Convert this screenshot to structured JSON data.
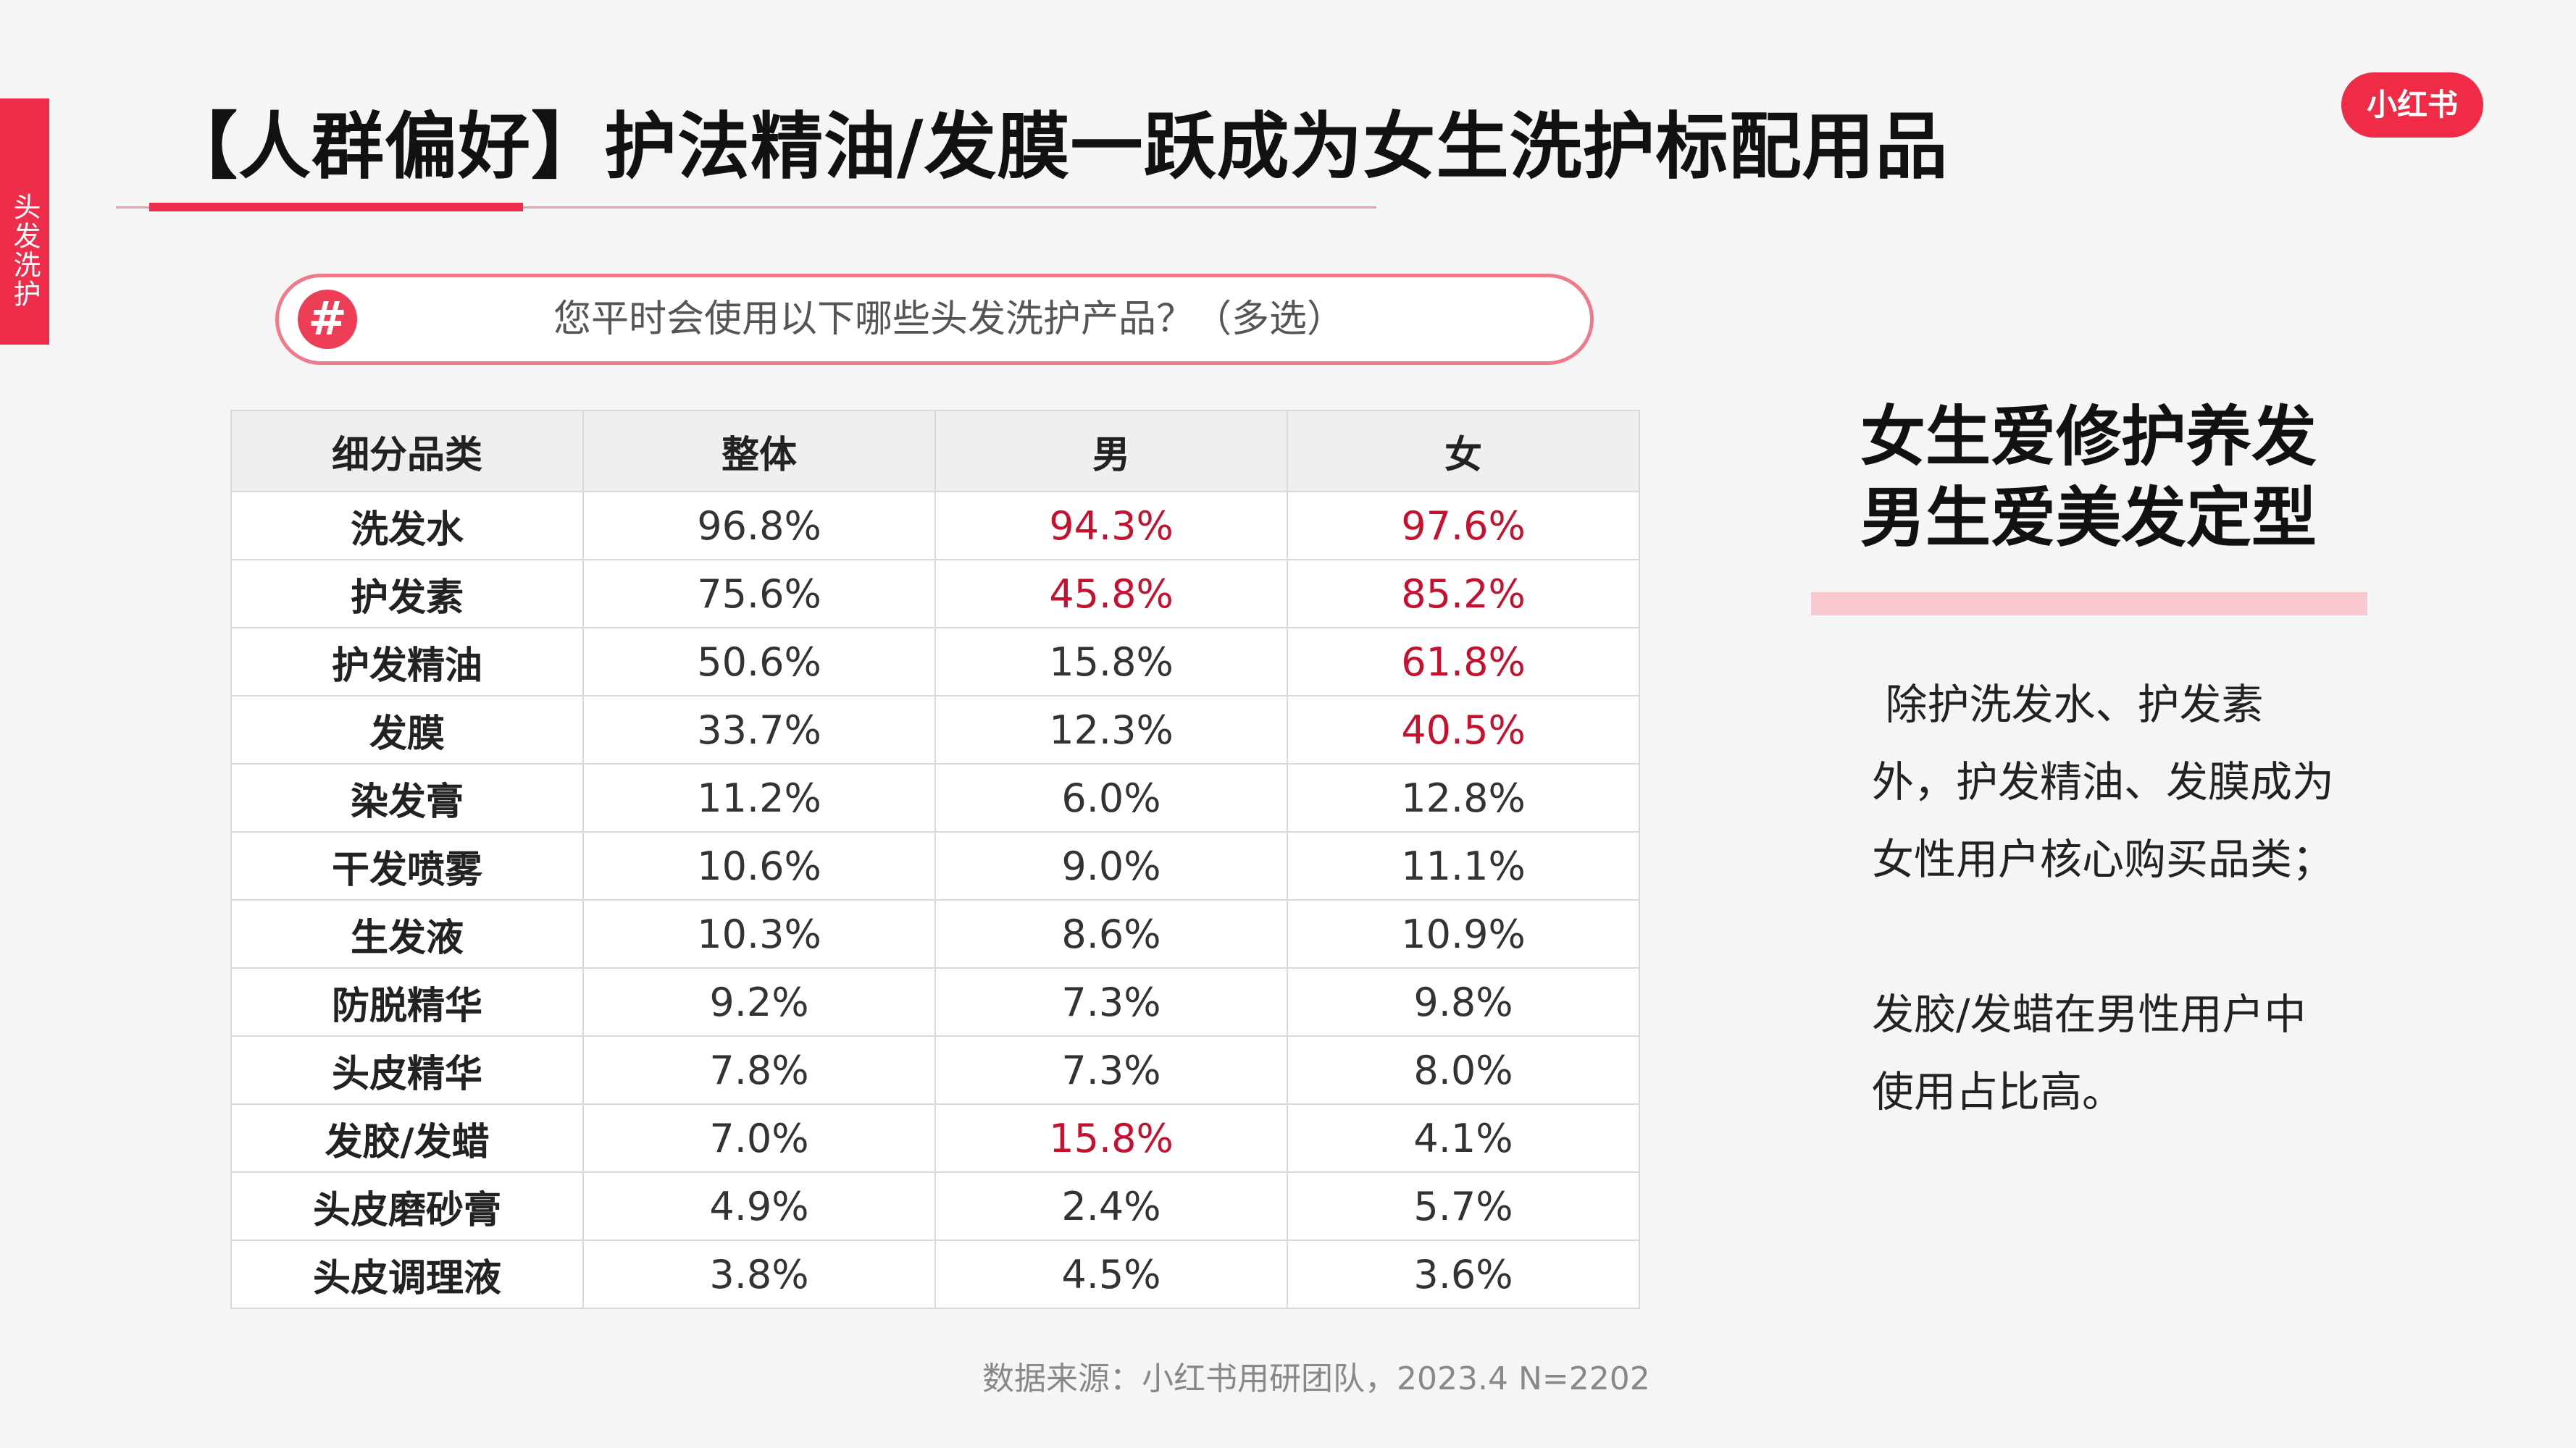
{
  "side_tab": "头发洗护",
  "logo": "小红书",
  "title": "【人群偏好】护法精油/发膜一跃成为女生洗护标配用品",
  "question": {
    "icon": "#",
    "text": "您平时会使用以下哪些头发洗护产品？（多选）"
  },
  "table": {
    "headers": [
      "细分品类",
      "整体",
      "男",
      "女"
    ],
    "rows": [
      {
        "cat": "洗发水",
        "all": "96.8%",
        "male": "94.3%",
        "female": "97.6%",
        "hl": [
          false,
          true,
          true
        ]
      },
      {
        "cat": "护发素",
        "all": "75.6%",
        "male": "45.8%",
        "female": "85.2%",
        "hl": [
          false,
          true,
          true
        ]
      },
      {
        "cat": "护发精油",
        "all": "50.6%",
        "male": "15.8%",
        "female": "61.8%",
        "hl": [
          false,
          false,
          true
        ]
      },
      {
        "cat": "发膜",
        "all": "33.7%",
        "male": "12.3%",
        "female": "40.5%",
        "hl": [
          false,
          false,
          true
        ]
      },
      {
        "cat": "染发膏",
        "all": "11.2%",
        "male": "6.0%",
        "female": "12.8%",
        "hl": [
          false,
          false,
          false
        ]
      },
      {
        "cat": "干发喷雾",
        "all": "10.6%",
        "male": "9.0%",
        "female": "11.1%",
        "hl": [
          false,
          false,
          false
        ]
      },
      {
        "cat": "生发液",
        "all": "10.3%",
        "male": "8.6%",
        "female": "10.9%",
        "hl": [
          false,
          false,
          false
        ]
      },
      {
        "cat": "防脱精华",
        "all": "9.2%",
        "male": "7.3%",
        "female": "9.8%",
        "hl": [
          false,
          false,
          false
        ]
      },
      {
        "cat": "头皮精华",
        "all": "7.8%",
        "male": "7.3%",
        "female": "8.0%",
        "hl": [
          false,
          false,
          false
        ]
      },
      {
        "cat": "发胶/发蜡",
        "all": "7.0%",
        "male": "15.8%",
        "female": "4.1%",
        "hl": [
          false,
          true,
          false
        ]
      },
      {
        "cat": "头皮磨砂膏",
        "all": "4.9%",
        "male": "2.4%",
        "female": "5.7%",
        "hl": [
          false,
          false,
          false
        ]
      },
      {
        "cat": "头皮调理液",
        "all": "3.8%",
        "male": "4.5%",
        "female": "3.6%",
        "hl": [
          false,
          false,
          false
        ]
      }
    ]
  },
  "headline": {
    "line1": "女生爱修护养发",
    "line2": "男生爱美发定型"
  },
  "description": {
    "p1": " 除护洗发水、护发素外，护发精油、发膜成为女性用户核心购买品类；",
    "p2": "发胶/发蜡在男性用户中使用占比高。"
  },
  "source": "数据来源：小红书用研团队，2023.4 N=2202",
  "colors": {
    "accent": "#ee2d4a",
    "highlight_text": "#c8102e",
    "pink_bar": "#f9c9d1"
  }
}
